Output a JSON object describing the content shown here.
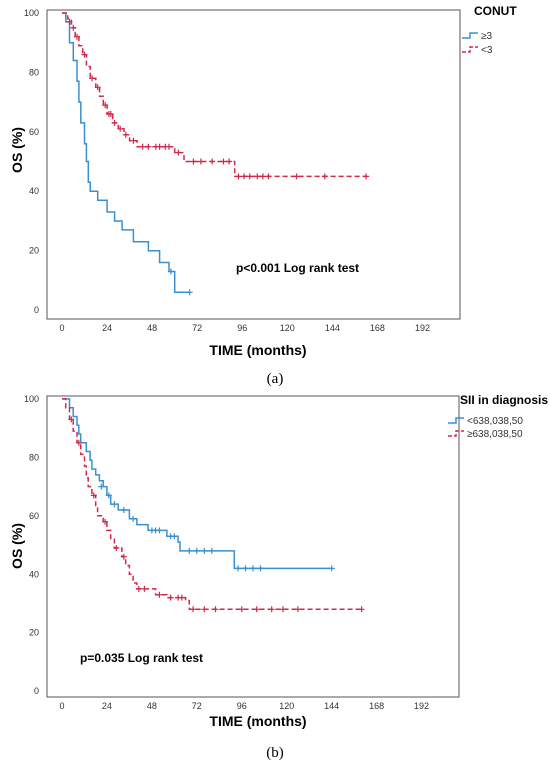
{
  "chart_data": [
    {
      "type": "line",
      "panel_label": "(a)",
      "xlabel": "TIME (months)",
      "ylabel": "OS (%)",
      "xticks": [
        0,
        24,
        48,
        72,
        96,
        120,
        144,
        168,
        192
      ],
      "yticks": [
        0,
        20,
        40,
        60,
        80,
        100
      ],
      "xlim": [
        -8,
        212
      ],
      "ylim": [
        -3,
        101
      ],
      "annotation": "p<0.001 Log rank test",
      "legend": {
        "title": "CONUT",
        "placement": "top-right"
      },
      "series": [
        {
          "name": "≥3",
          "color": "#3b8fd0",
          "dashed": false,
          "steps": [
            [
              0,
              100
            ],
            [
              2,
              97
            ],
            [
              4,
              90
            ],
            [
              6,
              84
            ],
            [
              8,
              77
            ],
            [
              9,
              70
            ],
            [
              10,
              63
            ],
            [
              12,
              56
            ],
            [
              13,
              50
            ],
            [
              14,
              43
            ],
            [
              15,
              40
            ],
            [
              19,
              37
            ],
            [
              24,
              33
            ],
            [
              28,
              30
            ],
            [
              32,
              27
            ],
            [
              38,
              23
            ],
            [
              46,
              20
            ],
            [
              52,
              16
            ],
            [
              57,
              13
            ],
            [
              60,
              6
            ],
            [
              68,
              6
            ]
          ],
          "censors": [
            [
              58,
              13
            ],
            [
              68,
              6
            ]
          ]
        },
        {
          "name": "<3",
          "color": "#d02a4a",
          "dashed": true,
          "steps": [
            [
              0,
              100
            ],
            [
              3,
              98
            ],
            [
              5,
              95
            ],
            [
              7,
              92
            ],
            [
              9,
              89
            ],
            [
              11,
              86
            ],
            [
              13,
              82
            ],
            [
              15,
              78
            ],
            [
              18,
              75
            ],
            [
              20,
              72
            ],
            [
              22,
              69
            ],
            [
              24,
              66
            ],
            [
              27,
              63
            ],
            [
              30,
              61
            ],
            [
              33,
              59
            ],
            [
              36,
              57
            ],
            [
              40,
              55
            ],
            [
              60,
              53
            ],
            [
              65,
              50
            ],
            [
              90,
              50
            ],
            [
              92,
              45
            ],
            [
              162,
              45
            ]
          ],
          "censors": [
            [
              4,
              97
            ],
            [
              6,
              95
            ],
            [
              8,
              92
            ],
            [
              12,
              86
            ],
            [
              16,
              78
            ],
            [
              19,
              75
            ],
            [
              23,
              69
            ],
            [
              25,
              66
            ],
            [
              26,
              66
            ],
            [
              28,
              63
            ],
            [
              31,
              61
            ],
            [
              34,
              59
            ],
            [
              38,
              57
            ],
            [
              43,
              55
            ],
            [
              46,
              55
            ],
            [
              50,
              55
            ],
            [
              52,
              55
            ],
            [
              55,
              55
            ],
            [
              57,
              55
            ],
            [
              62,
              53
            ],
            [
              70,
              50
            ],
            [
              74,
              50
            ],
            [
              80,
              50
            ],
            [
              86,
              50
            ],
            [
              89,
              50
            ],
            [
              94,
              45
            ],
            [
              97,
              45
            ],
            [
              100,
              45
            ],
            [
              104,
              45
            ],
            [
              107,
              45
            ],
            [
              110,
              45
            ],
            [
              125,
              45
            ],
            [
              140,
              45
            ],
            [
              162,
              45
            ]
          ]
        }
      ]
    },
    {
      "type": "line",
      "panel_label": "(b)",
      "xlabel": "TIME (months)",
      "ylabel": "OS (%)",
      "xticks": [
        0,
        24,
        48,
        72,
        96,
        120,
        144,
        168,
        192
      ],
      "yticks": [
        0,
        20,
        40,
        60,
        80,
        100
      ],
      "xlim": [
        -8,
        212
      ],
      "ylim": [
        -2,
        101
      ],
      "annotation": "p=0.035 Log rank test",
      "legend": {
        "title": "SII in diagnosis",
        "placement": "top-right"
      },
      "series": [
        {
          "name": "<638,038,50",
          "color": "#3b8fd0",
          "dashed": false,
          "steps": [
            [
              0,
              100
            ],
            [
              4,
              97
            ],
            [
              6,
              94
            ],
            [
              8,
              91
            ],
            [
              9,
              88
            ],
            [
              10,
              85
            ],
            [
              13,
              82
            ],
            [
              15,
              79
            ],
            [
              16,
              76
            ],
            [
              18,
              74
            ],
            [
              20,
              72
            ],
            [
              22,
              70
            ],
            [
              24,
              67
            ],
            [
              26,
              64
            ],
            [
              30,
              62
            ],
            [
              36,
              59
            ],
            [
              40,
              57
            ],
            [
              46,
              55
            ],
            [
              56,
              53
            ],
            [
              62,
              51
            ],
            [
              63,
              48
            ],
            [
              90,
              48
            ],
            [
              92,
              42
            ],
            [
              144,
              42
            ]
          ],
          "censors": [
            [
              21,
              70
            ],
            [
              25,
              67
            ],
            [
              28,
              64
            ],
            [
              33,
              62
            ],
            [
              38,
              59
            ],
            [
              48,
              55
            ],
            [
              50,
              55
            ],
            [
              52,
              55
            ],
            [
              58,
              53
            ],
            [
              60,
              53
            ],
            [
              68,
              48
            ],
            [
              72,
              48
            ],
            [
              76,
              48
            ],
            [
              80,
              48
            ],
            [
              94,
              42
            ],
            [
              98,
              42
            ],
            [
              102,
              42
            ],
            [
              106,
              42
            ],
            [
              144,
              42
            ]
          ]
        },
        {
          "name": "≥638,038,50",
          "color": "#d02a4a",
          "dashed": true,
          "steps": [
            [
              0,
              100
            ],
            [
              2,
              97
            ],
            [
              4,
              93
            ],
            [
              6,
              89
            ],
            [
              8,
              85
            ],
            [
              10,
              81
            ],
            [
              12,
              77
            ],
            [
              13,
              73
            ],
            [
              14,
              70
            ],
            [
              16,
              67
            ],
            [
              18,
              63
            ],
            [
              19,
              60
            ],
            [
              22,
              58
            ],
            [
              24,
              55
            ],
            [
              26,
              52
            ],
            [
              28,
              49
            ],
            [
              32,
              46
            ],
            [
              34,
              43
            ],
            [
              36,
              40
            ],
            [
              38,
              37
            ],
            [
              40,
              35
            ],
            [
              50,
              33
            ],
            [
              56,
              32
            ],
            [
              66,
              31
            ],
            [
              68,
              28
            ],
            [
              160,
              28
            ]
          ],
          "censors": [
            [
              5,
              93
            ],
            [
              9,
              85
            ],
            [
              17,
              67
            ],
            [
              23,
              58
            ],
            [
              29,
              49
            ],
            [
              33,
              46
            ],
            [
              41,
              35
            ],
            [
              44,
              35
            ],
            [
              52,
              33
            ],
            [
              58,
              32
            ],
            [
              62,
              32
            ],
            [
              64,
              32
            ],
            [
              70,
              28
            ],
            [
              76,
              28
            ],
            [
              82,
              28
            ],
            [
              96,
              28
            ],
            [
              104,
              28
            ],
            [
              112,
              28
            ],
            [
              118,
              28
            ],
            [
              126,
              28
            ],
            [
              160,
              28
            ]
          ]
        }
      ]
    }
  ]
}
